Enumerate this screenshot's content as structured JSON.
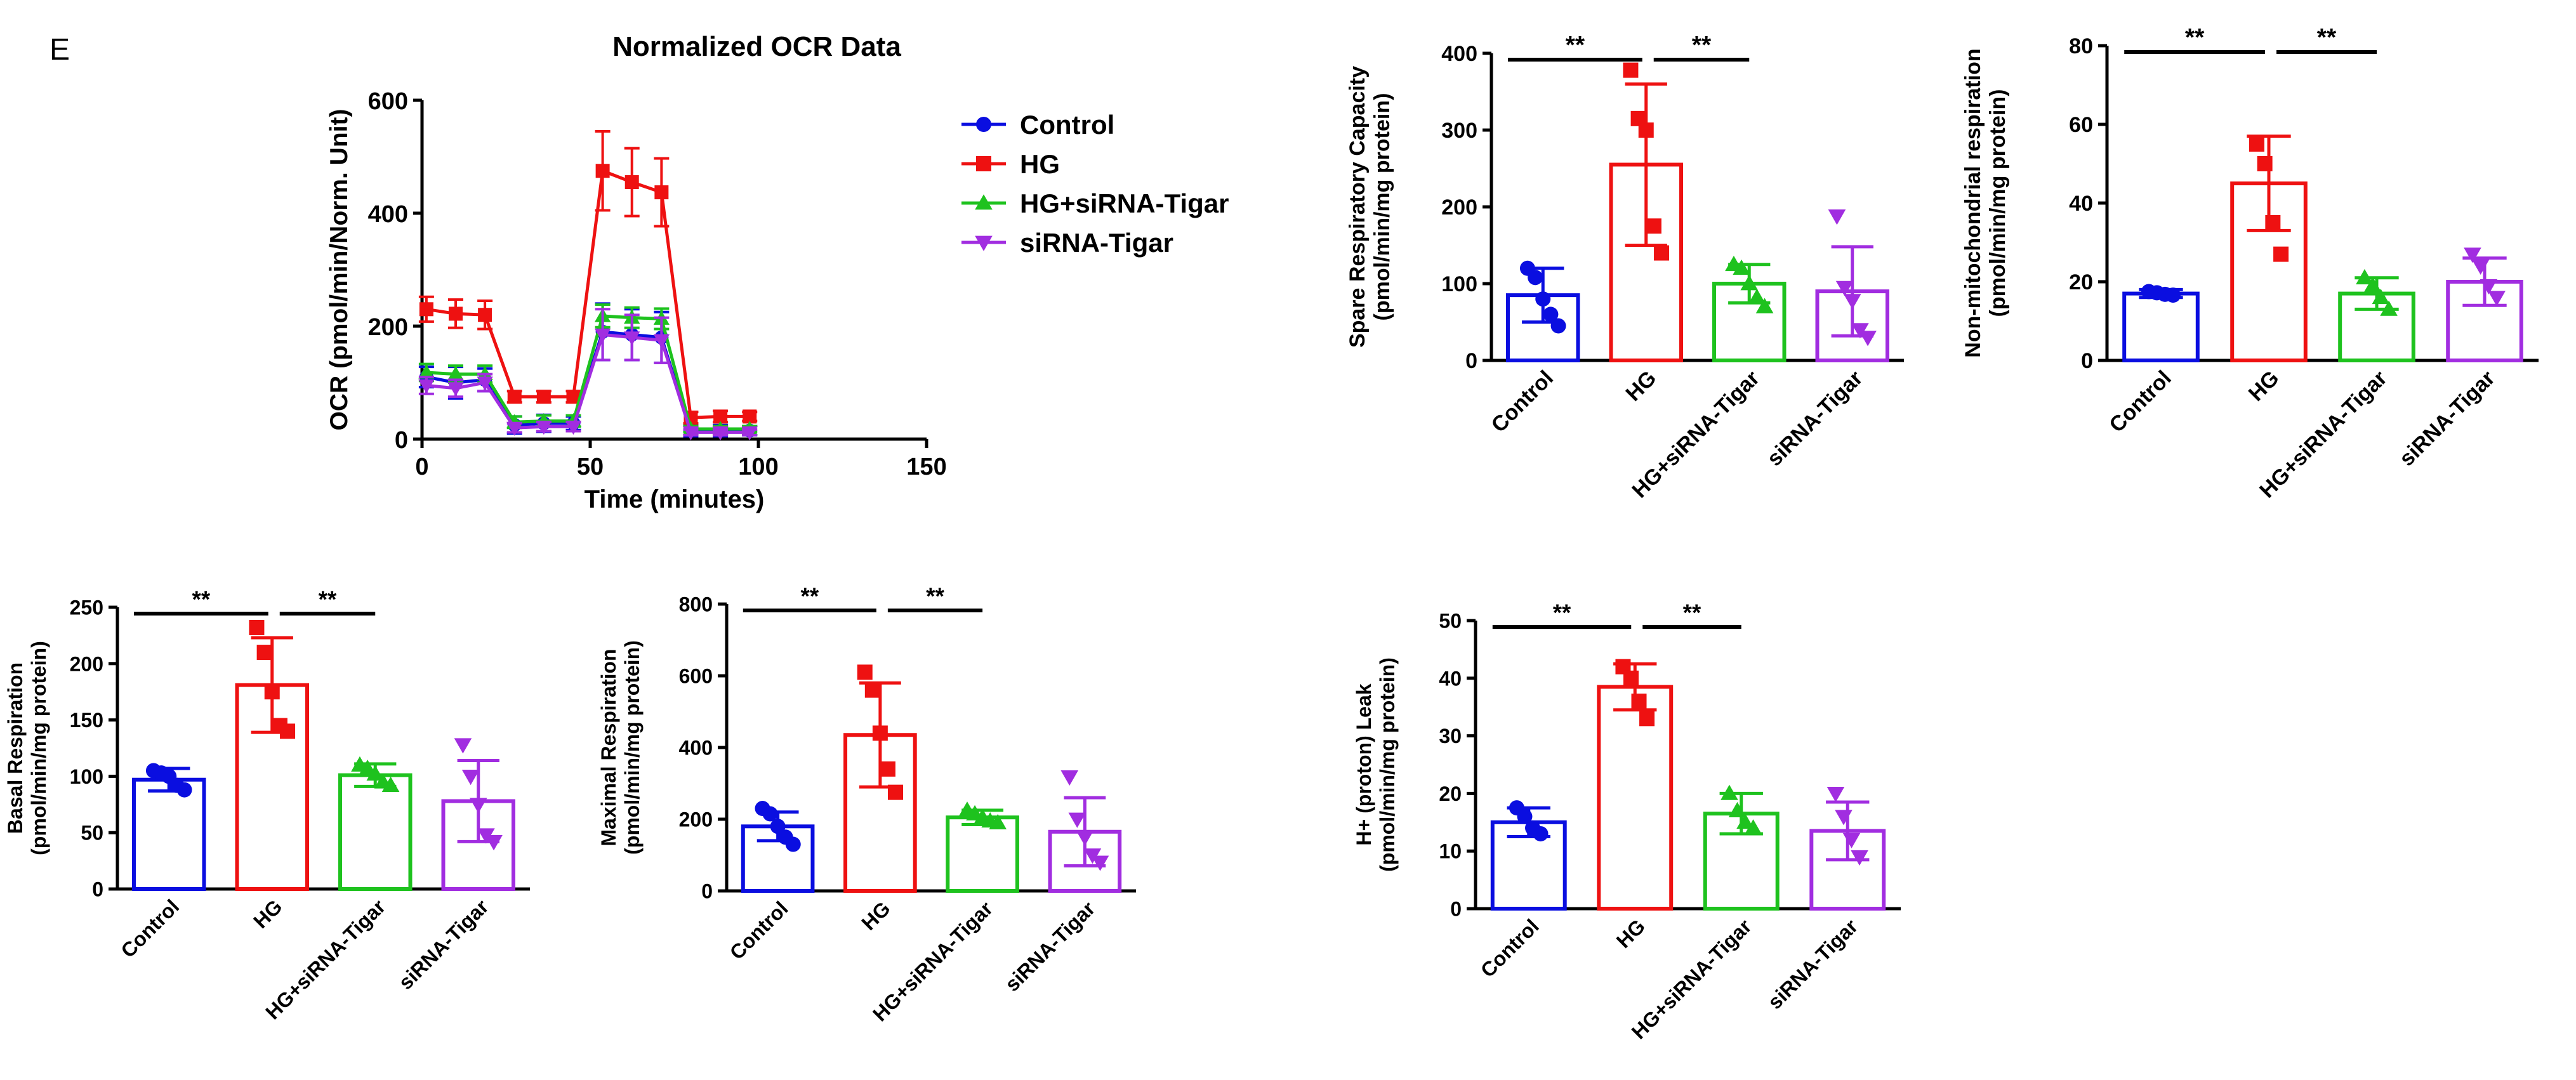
{
  "panel_label": "E",
  "colors": {
    "control": "#0a0ee0",
    "hg": "#ee1111",
    "hg_sirna": "#1ec21e",
    "sirna": "#a12de0",
    "axis": "#000000"
  },
  "chart_data": [
    {
      "id": "ocr",
      "type": "line",
      "title": "Normalized OCR Data",
      "xlabel": "Time (minutes)",
      "ylabel": "OCR (pmol/min/Norm. Unit)",
      "xlim": [
        0,
        150
      ],
      "ylim": [
        0,
        600
      ],
      "xticks": [
        0,
        50,
        100,
        150
      ],
      "yticks": [
        0,
        200,
        400,
        600
      ],
      "x": [
        1.3,
        10,
        18.7,
        27.5,
        36.2,
        45,
        53.7,
        62.4,
        71.2,
        79.9,
        88.7,
        97.4
      ],
      "legend_position": "right",
      "series": [
        {
          "name": "Control",
          "color_key": "control",
          "marker": "circle",
          "values": [
            110,
            100,
            105,
            25,
            28,
            28,
            190,
            185,
            180,
            15,
            15,
            15
          ],
          "errors": [
            18,
            28,
            20,
            15,
            15,
            12,
            50,
            45,
            45,
            10,
            10,
            8
          ]
        },
        {
          "name": "HG",
          "color_key": "hg",
          "marker": "square",
          "values": [
            230,
            222,
            220,
            75,
            75,
            75,
            475,
            455,
            437,
            38,
            40,
            40
          ],
          "errors": [
            22,
            25,
            25,
            10,
            10,
            10,
            70,
            60,
            60,
            10,
            10,
            8
          ]
        },
        {
          "name": "HG+siRNA-Tigar",
          "color_key": "hg_sirna",
          "marker": "triangle",
          "values": [
            118,
            115,
            115,
            30,
            32,
            32,
            218,
            215,
            213,
            18,
            18,
            18
          ],
          "errors": [
            15,
            15,
            15,
            10,
            10,
            10,
            20,
            18,
            18,
            5,
            5,
            5
          ]
        },
        {
          "name": "siRNA-Tigar",
          "color_key": "sirna",
          "marker": "triangle-down",
          "values": [
            95,
            90,
            100,
            20,
            22,
            22,
            185,
            180,
            175,
            12,
            12,
            12
          ],
          "errors": [
            15,
            15,
            15,
            8,
            8,
            8,
            45,
            40,
            40,
            5,
            5,
            5
          ]
        }
      ]
    },
    {
      "id": "spare",
      "type": "bar",
      "ylabel_lines": [
        "Spare Respiratory Capacity",
        "(pmol/min/mg protein)"
      ],
      "categories": [
        "Control",
        "HG",
        "HG+siRNA-Tigar",
        "siRNA-Tigar"
      ],
      "ylim": [
        0,
        400
      ],
      "yticks": [
        0,
        100,
        200,
        300,
        400
      ],
      "values": [
        85,
        255,
        100,
        90
      ],
      "errors": [
        35,
        105,
        25,
        58
      ],
      "points": [
        [
          120,
          108,
          80,
          60,
          45
        ],
        [
          378,
          315,
          300,
          175,
          140
        ],
        [
          125,
          120,
          100,
          82,
          70
        ],
        [
          188,
          95,
          78,
          40,
          30
        ]
      ],
      "significance": [
        {
          "from": 0,
          "to": 1,
          "label": "**"
        },
        {
          "from": 1,
          "to": 2,
          "label": "**"
        }
      ]
    },
    {
      "id": "nonmito",
      "type": "bar",
      "ylabel_lines": [
        "Non-mitochondrial respiration",
        "(pmol/min/mg protein)"
      ],
      "categories": [
        "Control",
        "HG",
        "HG+siRNA-Tigar",
        "siRNA-Tigar"
      ],
      "ylim": [
        0,
        80
      ],
      "yticks": [
        0,
        20,
        40,
        60,
        80
      ],
      "values": [
        17,
        45,
        17,
        20
      ],
      "errors": [
        1,
        12,
        4,
        6
      ],
      "points": [
        [
          17.5,
          17.2,
          16.8,
          16.6
        ],
        [
          55,
          50,
          35,
          27
        ],
        [
          21,
          19,
          16,
          13
        ],
        [
          27,
          24,
          19,
          16
        ]
      ],
      "significance": [
        {
          "from": 0,
          "to": 1,
          "label": "**"
        },
        {
          "from": 1,
          "to": 2,
          "label": "**"
        }
      ]
    },
    {
      "id": "basal",
      "type": "bar",
      "ylabel_lines": [
        "Basal Respiration",
        "(pmol/min/mg protein)"
      ],
      "categories": [
        "Control",
        "HG",
        "HG+siRNA-Tigar",
        "siRNA-Tigar"
      ],
      "ylim": [
        0,
        250
      ],
      "yticks": [
        0,
        50,
        100,
        150,
        200,
        250
      ],
      "values": [
        97,
        181,
        101,
        78
      ],
      "errors": [
        10,
        42,
        10,
        36
      ],
      "points": [
        [
          105,
          103,
          100,
          92,
          88
        ],
        [
          232,
          210,
          175,
          145,
          140
        ],
        [
          110,
          107,
          102,
          95,
          92
        ],
        [
          128,
          100,
          75,
          48,
          42
        ]
      ],
      "significance": [
        {
          "from": 0,
          "to": 1,
          "label": "**"
        },
        {
          "from": 1,
          "to": 2,
          "label": "**"
        }
      ]
    },
    {
      "id": "maximal",
      "type": "bar",
      "ylabel_lines": [
        "Maximal Respiration",
        "(pmol/min/mg protein)"
      ],
      "categories": [
        "Control",
        "HG",
        "HG+siRNA-Tigar",
        "siRNA-Tigar"
      ],
      "ylim": [
        0,
        800
      ],
      "yticks": [
        0,
        200,
        400,
        600,
        800
      ],
      "values": [
        180,
        435,
        205,
        165
      ],
      "errors": [
        40,
        145,
        20,
        95
      ],
      "points": [
        [
          230,
          215,
          180,
          150,
          130
        ],
        [
          610,
          560,
          440,
          340,
          275
        ],
        [
          225,
          215,
          205,
          195,
          190
        ],
        [
          318,
          200,
          150,
          100,
          80
        ]
      ],
      "significance": [
        {
          "from": 0,
          "to": 1,
          "label": "**"
        },
        {
          "from": 1,
          "to": 2,
          "label": "**"
        }
      ]
    },
    {
      "id": "leak",
      "type": "bar",
      "ylabel_lines": [
        "H+ (proton) Leak",
        "(pmol/min/mg protein)"
      ],
      "categories": [
        "Control",
        "HG",
        "HG+siRNA-Tigar",
        "siRNA-Tigar"
      ],
      "ylim": [
        0,
        50
      ],
      "yticks": [
        0,
        10,
        20,
        30,
        40,
        50
      ],
      "values": [
        15,
        38.5,
        16.5,
        13.5
      ],
      "errors": [
        2.5,
        4,
        3.5,
        5
      ],
      "points": [
        [
          17.5,
          16,
          14,
          13
        ],
        [
          42,
          40,
          36,
          33
        ],
        [
          20,
          17,
          15,
          14
        ],
        [
          20,
          16,
          12,
          9
        ]
      ],
      "significance": [
        {
          "from": 0,
          "to": 1,
          "label": "**"
        },
        {
          "from": 1,
          "to": 2,
          "label": "**"
        }
      ]
    }
  ]
}
